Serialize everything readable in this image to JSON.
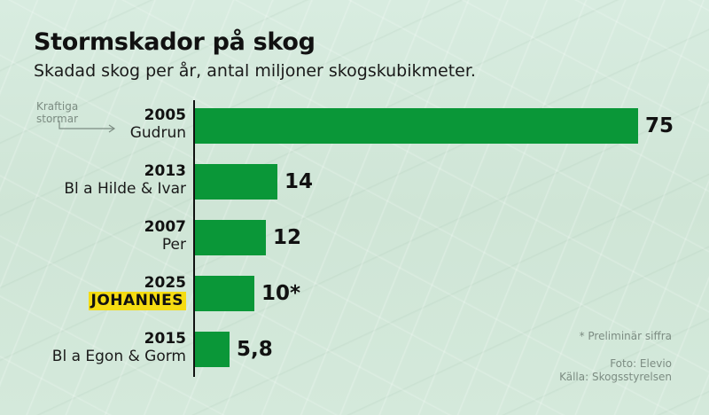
{
  "title": "Stormskador på skog",
  "subtitle": "Skadad skog per år, antal miljoner skogskubikmeter.",
  "annotation": {
    "line1": "Kraftiga",
    "line2": "stormar"
  },
  "bars": [
    {
      "year": "2005",
      "name": "Gudrun",
      "value": 75,
      "label": "75",
      "highlight": false
    },
    {
      "year": "2013",
      "name": "Bl a Hilde & Ivar",
      "value": 14,
      "label": "14",
      "highlight": false
    },
    {
      "year": "2007",
      "name": "Per",
      "value": 12,
      "label": "12",
      "highlight": false
    },
    {
      "year": "2025",
      "name": "JOHANNES",
      "value": 10,
      "label": "10*",
      "highlight": true
    },
    {
      "year": "2015",
      "name": "Bl a Egon & Gorm",
      "value": 5.8,
      "label": "5,8",
      "highlight": false
    }
  ],
  "footnote": "* Preliminär siffra",
  "credits": {
    "photo": "Foto: Elevio",
    "source": "Källa: Skogsstyrelsen"
  },
  "colors": {
    "bar": "#0a9738",
    "highlight": "#f5dc12",
    "background": "#d3e8da"
  },
  "chart_data": {
    "type": "bar",
    "orientation": "horizontal",
    "title": "Stormskador på skog",
    "subtitle": "Skadad skog per år, antal miljoner skogskubikmeter.",
    "categories": [
      "2005 Gudrun",
      "2013 Bl a Hilde & Ivar",
      "2007 Per",
      "2025 JOHANNES",
      "2015 Bl a Egon & Gorm"
    ],
    "values": [
      75,
      14,
      12,
      10,
      5.8
    ],
    "data_labels": [
      "75",
      "14",
      "12",
      "10*",
      "5,8"
    ],
    "xlabel": "",
    "ylabel": "",
    "unit": "miljoner skogskubikmeter",
    "grid": false,
    "legend": null,
    "annotations": [
      "Kraftiga stormar",
      "* Preliminär siffra",
      "Foto: Elevio",
      "Källa: Skogsstyrelsen"
    ],
    "highlighted_category": "2025 JOHANNES"
  }
}
